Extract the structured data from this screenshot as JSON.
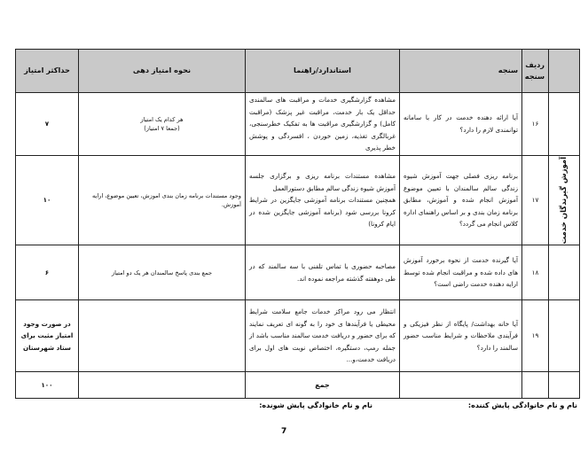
{
  "table": {
    "headers": {
      "category": "",
      "row": "ردیف سنجه",
      "criterion": "سنجه",
      "standard": "استاندارد/راهنما",
      "scoring": "نحوه امتیاز دهی",
      "max": "حداکثر امتیاز"
    },
    "category_label": "آموزش گیرندگان خدمت",
    "rows": [
      {
        "row": "۱۶",
        "criterion": "آیا ارائه دهنده خدمت در کار با سامانه توانمندی لازم را دارد؟",
        "standard": "مشاهده گزارشگیری خدمات و مراقبت های سالمندی حداقل یک بار خدمت، مراقبت غیر پزشک (مراقبت کامل) و گزارشگیری مراقبت ها به تفکیک خطرسنجی، غربالگری تغذیه، زمین خوردن ، افسردگی و پوشش خطر پذیری",
        "scoring": "هر کدام یک امتیاز",
        "scoring_note": "(جمعا ۷ امتیاز)",
        "max": "۷"
      },
      {
        "row": "۱۷",
        "criterion": "برنامه ریزی فصلی جهت آموزش شیوه زندگی سالم سالمندان با تعیین موضوع آموزش انجام شده و آموزش، مطابق برنامه زمان بندی و بر اساس راهنمای اداره کلاس انجام می گردد؟",
        "standard": "مشاهده مستندات برنامه ریزی و برگزاری جلسه آموزش شیوه زندگی سالم مطابق دستورالعمل",
        "standard_note": "همچنین مستندات برنامه آموزشی جایگزین در شرایط کرونا بررسی شود (برنامه آموزشی جایگزین شده در ایام کرونا)",
        "scoring": "وجود مستندات برنامه زمان بندی اموزش، تعیین موضوع، ارایه آموزش.",
        "max": "۱۰"
      },
      {
        "row": "۱۸",
        "criterion": "آیا گیرنده خدمت از نحوه برخورد آموزش های داده شده و مراقبت انجام شده توسط ارایه دهنده خدمت راضی است؟",
        "standard": "مصاحبه حضوری یا تماس تلفنی با سه سالمند که در طی دوهفته گذشته مراجعه نموده اند.",
        "scoring": "جمع بندی پاسخ سالمندان هر یک دو امتیاز",
        "max": "۶"
      },
      {
        "row": "۱۹",
        "criterion": "آیا خانه بهداشت/ پایگاه از نظر فیزیکی و فرآیندی ملاحظات و شرایط مناسب حضور سالمند را دارد؟",
        "standard": "انتظار می رود مراکز خدمات جامع سلامت شرایط محیطی یا فرآیندها ی خود را به گونه ای تعریف نمایند که برای حضور و دریافت خدمت سالمند مناسب باشد از جمله رمپ، دستگیره، اختصاص نوبت های اول برای دریافت خدمت،و...",
        "scoring": "",
        "max": "در صورت وجود امتیاز مثبت برای ستاد شهرستان"
      }
    ],
    "total_label": "جمع",
    "total_value": "۱۰۰"
  },
  "footer": {
    "assessor": "نام و نام خانوادگی پایش کننده:",
    "assessee": "نام و نام خانوادگی پایش شونده:",
    "page": "7"
  }
}
